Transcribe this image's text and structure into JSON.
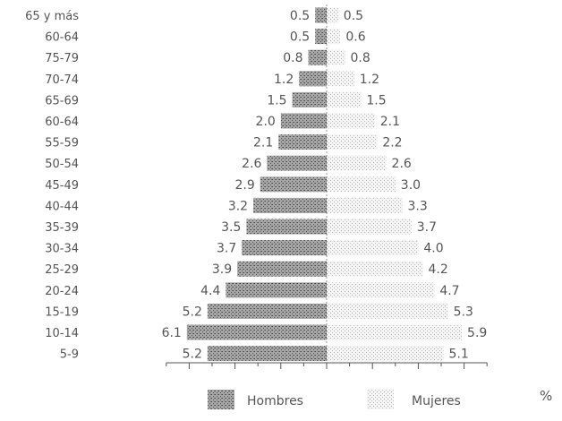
{
  "chart_data": {
    "type": "bar",
    "categories": [
      "65 y más",
      "60-64",
      "75-79",
      "70-74",
      "65-69",
      "60-64",
      "55-59",
      "50-54",
      "45-49",
      "40-44",
      "35-39",
      "30-34",
      "25-29",
      "20-24",
      "15-19",
      "10-14",
      "5-9"
    ],
    "series": [
      {
        "name": "Hombres",
        "values": [
          0.5,
          0.5,
          0.8,
          1.2,
          1.5,
          2.0,
          2.1,
          2.6,
          2.9,
          3.2,
          3.5,
          3.7,
          3.9,
          4.4,
          5.2,
          6.1,
          5.2
        ],
        "labels": [
          "0.5",
          "0.5",
          "0.8",
          "1.2",
          "1.5",
          "2.0",
          "2.1",
          "2.6",
          "2.9",
          "3.2",
          "3.5",
          "3.7",
          "3.9",
          "4.4",
          "5.2",
          "6.1",
          "5.2"
        ],
        "pattern": "dark-stipple"
      },
      {
        "name": "Mujeres",
        "values": [
          0.5,
          0.6,
          0.8,
          1.2,
          1.5,
          2.1,
          2.2,
          2.6,
          3.0,
          3.3,
          3.7,
          4.0,
          4.2,
          4.7,
          5.3,
          5.9,
          5.1
        ],
        "labels": [
          "0.5",
          "0.6",
          "0.8",
          "1.2",
          "1.5",
          "2.1",
          "2.2",
          "2.6",
          "3.0",
          "3.3",
          "3.7",
          "4.0",
          "4.2",
          "4.7",
          "5.3",
          "5.9",
          "5.1"
        ],
        "pattern": "light-stipple"
      }
    ],
    "unit": "%",
    "xlim": [
      -7,
      7
    ],
    "orientation": "horizontal-population-pyramid",
    "legend_position": "bottom",
    "colors": {
      "hombres": "#8c8c8c",
      "mujeres": "#d6d6d6",
      "axis": "#555555"
    }
  }
}
